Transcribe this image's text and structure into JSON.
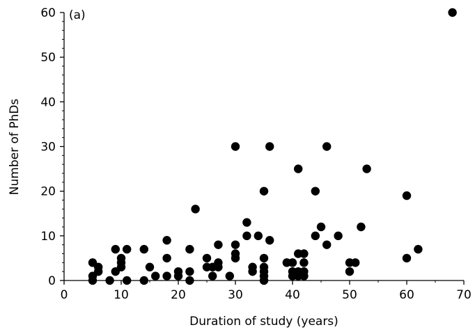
{
  "chart_data": {
    "type": "scatter",
    "panel_label": "(a)",
    "xlabel": "Duration of study (years)",
    "ylabel": "Number of PhDs",
    "xlim": [
      0,
      70
    ],
    "ylim": [
      0,
      60
    ],
    "x_ticks": [
      "0",
      "10",
      "20",
      "30",
      "40",
      "50",
      "60",
      "70"
    ],
    "y_ticks": [
      "0",
      "10",
      "20",
      "30",
      "40",
      "50",
      "60"
    ],
    "grid": false,
    "legend": "none",
    "marker_color": "#000000",
    "points": [
      {
        "x": 5,
        "y": 4
      },
      {
        "x": 5,
        "y": 1
      },
      {
        "x": 5,
        "y": 0
      },
      {
        "x": 6,
        "y": 3
      },
      {
        "x": 6,
        "y": 2
      },
      {
        "x": 8,
        "y": 0
      },
      {
        "x": 9,
        "y": 7
      },
      {
        "x": 9,
        "y": 2
      },
      {
        "x": 10,
        "y": 5
      },
      {
        "x": 10,
        "y": 4
      },
      {
        "x": 10,
        "y": 3
      },
      {
        "x": 11,
        "y": 7
      },
      {
        "x": 11,
        "y": 0
      },
      {
        "x": 14,
        "y": 7
      },
      {
        "x": 14,
        "y": 0
      },
      {
        "x": 15,
        "y": 3
      },
      {
        "x": 16,
        "y": 1
      },
      {
        "x": 18,
        "y": 9
      },
      {
        "x": 18,
        "y": 5
      },
      {
        "x": 18,
        "y": 1
      },
      {
        "x": 20,
        "y": 2
      },
      {
        "x": 20,
        "y": 1
      },
      {
        "x": 22,
        "y": 7
      },
      {
        "x": 22,
        "y": 2
      },
      {
        "x": 22,
        "y": 0
      },
      {
        "x": 23,
        "y": 16
      },
      {
        "x": 25,
        "y": 5
      },
      {
        "x": 25,
        "y": 3
      },
      {
        "x": 26,
        "y": 3
      },
      {
        "x": 26,
        "y": 1
      },
      {
        "x": 27,
        "y": 8
      },
      {
        "x": 27,
        "y": 4
      },
      {
        "x": 27,
        "y": 3
      },
      {
        "x": 29,
        "y": 1
      },
      {
        "x": 30,
        "y": 30
      },
      {
        "x": 30,
        "y": 8
      },
      {
        "x": 30,
        "y": 6
      },
      {
        "x": 30,
        "y": 5
      },
      {
        "x": 32,
        "y": 13
      },
      {
        "x": 32,
        "y": 10
      },
      {
        "x": 33,
        "y": 3
      },
      {
        "x": 33,
        "y": 2
      },
      {
        "x": 34,
        "y": 10
      },
      {
        "x": 35,
        "y": 20
      },
      {
        "x": 35,
        "y": 5
      },
      {
        "x": 35,
        "y": 3
      },
      {
        "x": 35,
        "y": 2
      },
      {
        "x": 35,
        "y": 1
      },
      {
        "x": 35,
        "y": 0
      },
      {
        "x": 36,
        "y": 30
      },
      {
        "x": 36,
        "y": 9
      },
      {
        "x": 39,
        "y": 4
      },
      {
        "x": 40,
        "y": 4
      },
      {
        "x": 40,
        "y": 2
      },
      {
        "x": 40,
        "y": 1
      },
      {
        "x": 41,
        "y": 25
      },
      {
        "x": 41,
        "y": 6
      },
      {
        "x": 41,
        "y": 2
      },
      {
        "x": 41,
        "y": 1
      },
      {
        "x": 42,
        "y": 6
      },
      {
        "x": 42,
        "y": 4
      },
      {
        "x": 42,
        "y": 2
      },
      {
        "x": 42,
        "y": 1
      },
      {
        "x": 44,
        "y": 20
      },
      {
        "x": 44,
        "y": 10
      },
      {
        "x": 45,
        "y": 12
      },
      {
        "x": 46,
        "y": 30
      },
      {
        "x": 46,
        "y": 8
      },
      {
        "x": 48,
        "y": 10
      },
      {
        "x": 50,
        "y": 4
      },
      {
        "x": 50,
        "y": 2
      },
      {
        "x": 51,
        "y": 4
      },
      {
        "x": 52,
        "y": 12
      },
      {
        "x": 53,
        "y": 25
      },
      {
        "x": 60,
        "y": 19
      },
      {
        "x": 60,
        "y": 5
      },
      {
        "x": 62,
        "y": 7
      },
      {
        "x": 68,
        "y": 60
      }
    ]
  }
}
